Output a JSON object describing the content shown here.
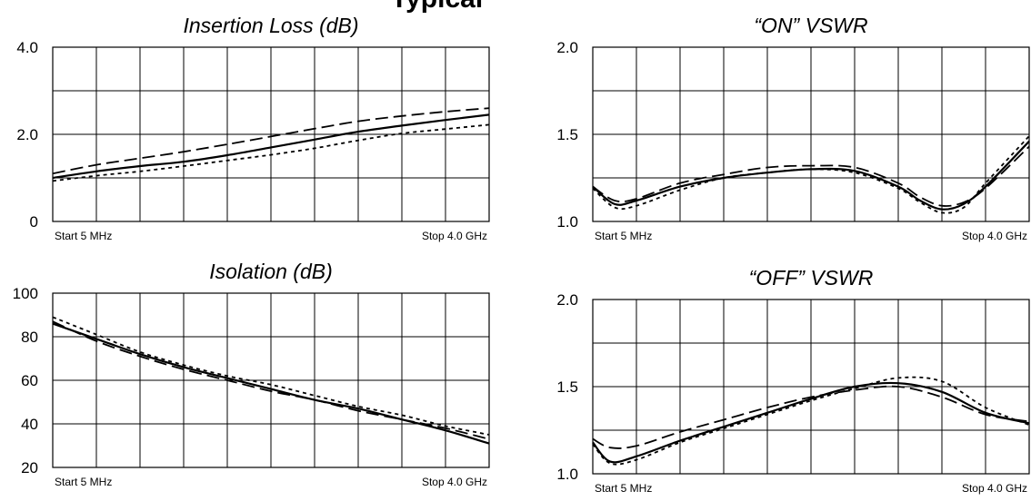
{
  "page": {
    "top_title_fragment": "Typical"
  },
  "chart_data": [
    {
      "type": "line",
      "title": "Insertion Loss (dB)",
      "xlabel": "",
      "ylabel": "",
      "x_start_label": "Start 5 MHz",
      "x_stop_label": "Stop 4.0 GHz",
      "xlim": [
        0,
        10
      ],
      "ylim": [
        0,
        4
      ],
      "yticks": [
        0,
        2,
        4
      ],
      "ytick_labels": [
        "0",
        "2.0",
        "4.0"
      ],
      "grid": true,
      "series": [
        {
          "style": "solid",
          "x": [
            0,
            1,
            2,
            3,
            4,
            5,
            6,
            7,
            8,
            9,
            10
          ],
          "y": [
            1.0,
            1.15,
            1.27,
            1.37,
            1.52,
            1.7,
            1.88,
            2.06,
            2.2,
            2.33,
            2.45
          ]
        },
        {
          "style": "long-dash",
          "x": [
            0,
            1,
            2,
            3,
            4,
            5,
            6,
            7,
            8,
            9,
            10
          ],
          "y": [
            1.1,
            1.3,
            1.45,
            1.6,
            1.77,
            1.95,
            2.13,
            2.3,
            2.42,
            2.52,
            2.6
          ]
        },
        {
          "style": "short-dash",
          "x": [
            0,
            1,
            2,
            3,
            4,
            5,
            6,
            7,
            8,
            9,
            10
          ],
          "y": [
            0.93,
            1.05,
            1.15,
            1.27,
            1.4,
            1.53,
            1.68,
            1.86,
            2.02,
            2.12,
            2.22
          ]
        }
      ]
    },
    {
      "type": "line",
      "title": "“ON” VSWR",
      "xlabel": "",
      "ylabel": "",
      "x_start_label": "Start 5 MHz",
      "x_stop_label": "Stop 4.0 GHz",
      "xlim": [
        0,
        10
      ],
      "ylim": [
        1.0,
        2.0
      ],
      "yticks": [
        1.0,
        1.5,
        2.0
      ],
      "ytick_labels": [
        "1.0",
        "1.5",
        "2.0"
      ],
      "grid": true,
      "series": [
        {
          "style": "solid",
          "x": [
            0,
            0.5,
            1,
            2,
            3,
            4,
            5,
            6,
            7,
            7.5,
            8,
            8.5,
            9,
            10
          ],
          "y": [
            1.2,
            1.1,
            1.12,
            1.2,
            1.25,
            1.28,
            1.3,
            1.29,
            1.2,
            1.12,
            1.07,
            1.1,
            1.2,
            1.46
          ]
        },
        {
          "style": "long-dash",
          "x": [
            0,
            0.5,
            1,
            2,
            3,
            4,
            5,
            6,
            7,
            7.5,
            8,
            8.5,
            9,
            10
          ],
          "y": [
            1.2,
            1.12,
            1.13,
            1.22,
            1.27,
            1.31,
            1.32,
            1.31,
            1.22,
            1.14,
            1.09,
            1.11,
            1.19,
            1.43
          ]
        },
        {
          "style": "short-dash",
          "x": [
            0,
            0.5,
            1,
            2,
            3,
            4,
            5,
            6,
            7,
            7.5,
            8,
            8.5,
            9,
            10
          ],
          "y": [
            1.19,
            1.08,
            1.09,
            1.18,
            1.25,
            1.28,
            1.3,
            1.28,
            1.19,
            1.11,
            1.05,
            1.08,
            1.22,
            1.49
          ]
        }
      ]
    },
    {
      "type": "line",
      "title": "Isolation (dB)",
      "xlabel": "",
      "ylabel": "",
      "x_start_label": "Start 5 MHz",
      "x_stop_label": "Stop 4.0 GHz",
      "xlim": [
        0,
        10
      ],
      "ylim": [
        20,
        100
      ],
      "yticks": [
        20,
        40,
        60,
        80,
        100
      ],
      "ytick_labels": [
        "20",
        "40",
        "60",
        "80",
        "100"
      ],
      "grid": true,
      "series": [
        {
          "style": "solid",
          "x": [
            0,
            1,
            2,
            3,
            4,
            5,
            6,
            7,
            8,
            9,
            10
          ],
          "y": [
            86,
            79,
            72,
            66,
            61,
            56,
            51,
            47,
            42,
            37,
            31
          ]
        },
        {
          "style": "long-dash",
          "x": [
            0,
            1,
            2,
            3,
            4,
            5,
            6,
            7,
            8,
            9,
            10
          ],
          "y": [
            87,
            78,
            71,
            65,
            60,
            55,
            51,
            46,
            42,
            38,
            33
          ]
        },
        {
          "style": "short-dash",
          "x": [
            0,
            1,
            2,
            3,
            4,
            5,
            6,
            7,
            8,
            9,
            10
          ],
          "y": [
            89,
            81,
            73,
            67,
            62,
            58,
            53,
            48,
            44,
            39,
            35
          ]
        }
      ]
    },
    {
      "type": "line",
      "title": "“OFF” VSWR",
      "xlabel": "",
      "ylabel": "",
      "x_start_label": "Start 5 MHz",
      "x_stop_label": "Stop 4.0 GHz",
      "xlim": [
        0,
        10
      ],
      "ylim": [
        1.0,
        2.0
      ],
      "yticks": [
        1.0,
        1.5,
        2.0
      ],
      "ytick_labels": [
        "1.0",
        "1.5",
        "2.0"
      ],
      "grid": true,
      "series": [
        {
          "style": "solid",
          "x": [
            0,
            0.4,
            1,
            2,
            3,
            4,
            5,
            6,
            7,
            8,
            9,
            10
          ],
          "y": [
            1.18,
            1.07,
            1.1,
            1.19,
            1.27,
            1.35,
            1.43,
            1.5,
            1.52,
            1.47,
            1.35,
            1.29
          ]
        },
        {
          "style": "long-dash",
          "x": [
            0,
            0.4,
            1,
            2,
            3,
            4,
            5,
            6,
            7,
            8,
            9,
            10
          ],
          "y": [
            1.2,
            1.15,
            1.16,
            1.24,
            1.31,
            1.38,
            1.44,
            1.48,
            1.5,
            1.44,
            1.34,
            1.3
          ]
        },
        {
          "style": "short-dash",
          "x": [
            0,
            0.4,
            1,
            2,
            3,
            4,
            5,
            6,
            7,
            8,
            9,
            10
          ],
          "y": [
            1.17,
            1.06,
            1.08,
            1.18,
            1.26,
            1.34,
            1.42,
            1.49,
            1.55,
            1.53,
            1.38,
            1.28
          ]
        }
      ]
    }
  ]
}
